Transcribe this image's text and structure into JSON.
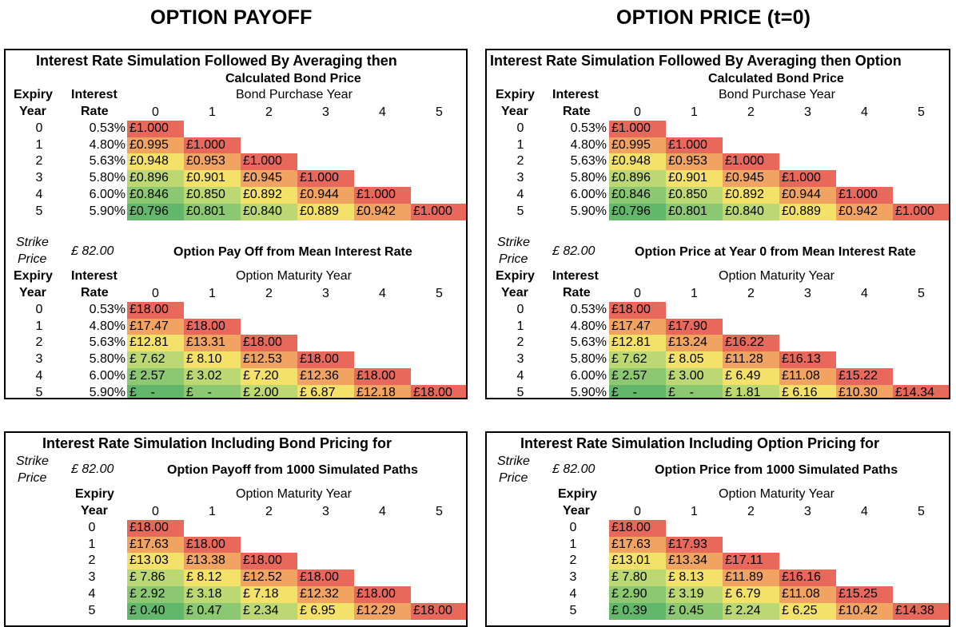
{
  "titles": {
    "left": "OPTION PAYOFF",
    "right": "OPTION PRICE (t=0)"
  },
  "labels": {
    "expiry": "Expiry",
    "year": "Year",
    "interest": "Interest",
    "rate": "Rate",
    "strike": "Strike",
    "price": "Price",
    "strike_value": "£ 82.00",
    "calc_bond_price": "Calculated Bond Price",
    "bond_purchase_year": "Bond Purchase Year",
    "option_maturity_year": "Option Maturity Year",
    "col_headers": [
      "0",
      "1",
      "2",
      "3",
      "4",
      "5"
    ],
    "row_years": [
      "0",
      "1",
      "2",
      "3",
      "4",
      "5"
    ],
    "rates": [
      "0.53%",
      "4.80%",
      "5.63%",
      "5.80%",
      "6.00%",
      "5.90%"
    ]
  },
  "bond_table": [
    [
      "£1.000"
    ],
    [
      "£0.995",
      "£1.000"
    ],
    [
      "£0.948",
      "£0.953",
      "£1.000"
    ],
    [
      "£0.896",
      "£0.901",
      "£0.945",
      "£1.000"
    ],
    [
      "£0.846",
      "£0.850",
      "£0.892",
      "£0.944",
      "£1.000"
    ],
    [
      "£0.796",
      "£0.801",
      "£0.840",
      "£0.889",
      "£0.942",
      "£1.000"
    ]
  ],
  "panels": {
    "tl": {
      "title": "Interest Rate Simulation Followed By Averaging then",
      "subtitle": "Option Pay Off from Mean Interest Rate",
      "table": [
        [
          "£18.00"
        ],
        [
          "£17.47",
          "£18.00"
        ],
        [
          "£12.81",
          "£13.31",
          "£18.00"
        ],
        [
          "£ 7.62",
          "£ 8.10",
          "£12.53",
          "£18.00"
        ],
        [
          "£ 2.57",
          "£ 3.02",
          "£ 7.20",
          "£12.36",
          "£18.00"
        ],
        [
          "£    -",
          "£    -",
          "£ 2.00",
          "£ 6.87",
          "£12.18",
          "£18.00"
        ]
      ]
    },
    "tr": {
      "title": "Interest Rate Simulation Followed By Averaging then Option",
      "subtitle": "Option Price at Year 0 from Mean Interest Rate",
      "table": [
        [
          "£18.00"
        ],
        [
          "£17.47",
          "£17.90"
        ],
        [
          "£12.81",
          "£13.24",
          "£16.22"
        ],
        [
          "£ 7.62",
          "£ 8.05",
          "£11.28",
          "£16.13"
        ],
        [
          "£ 2.57",
          "£ 3.00",
          "£ 6.49",
          "£11.08",
          "£15.22"
        ],
        [
          "£    -",
          "£    -",
          "£ 1.81",
          "£ 6.16",
          "£10.30",
          "£14.34"
        ]
      ]
    },
    "bl": {
      "title": "Interest Rate Simulation Including Bond Pricing for",
      "subtitle": "Option Payoff from 1000 Simulated Paths",
      "table": [
        [
          "£18.00"
        ],
        [
          "£17.63",
          "£18.00"
        ],
        [
          "£13.03",
          "£13.38",
          "£18.00"
        ],
        [
          "£ 7.86",
          "£ 8.12",
          "£12.52",
          "£18.00"
        ],
        [
          "£ 2.92",
          "£ 3.18",
          "£ 7.18",
          "£12.32",
          "£18.00"
        ],
        [
          "£ 0.40",
          "£ 0.47",
          "£ 2.34",
          "£ 6.95",
          "£12.29",
          "£18.00"
        ]
      ]
    },
    "br": {
      "title": "Interest Rate Simulation Including Option Pricing for",
      "subtitle": "Option Price from 1000 Simulated Paths",
      "table": [
        [
          "£18.00"
        ],
        [
          "£17.63",
          "£17.93"
        ],
        [
          "£13.01",
          "£13.34",
          "£17.11"
        ],
        [
          "£ 7.80",
          "£ 8.13",
          "£11.89",
          "£16.16"
        ],
        [
          "£ 2.90",
          "£ 3.19",
          "£ 6.79",
          "£11.08",
          "£15.25"
        ],
        [
          "£ 0.39",
          "£ 0.45",
          "£ 2.24",
          "£ 6.25",
          "£10.42",
          "£14.38"
        ]
      ]
    }
  }
}
